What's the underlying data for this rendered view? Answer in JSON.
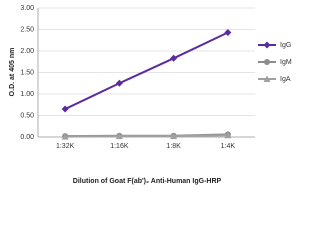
{
  "chart_data": {
    "type": "line",
    "y_label": "O.D. at 405 nm",
    "x_label": "Dilution of Goat F(ab')₂ Anti-Human IgG-HRP",
    "categories": [
      "1:32K",
      "1:16K",
      "1:8K",
      "1:4K"
    ],
    "series": [
      {
        "name": "IgG",
        "color": "#5a2ca0",
        "marker": "diamond",
        "values": [
          0.65,
          1.25,
          1.83,
          2.43
        ]
      },
      {
        "name": "IgM",
        "color": "#8c8c8c",
        "marker": "circle",
        "values": [
          0.02,
          0.03,
          0.03,
          0.06
        ]
      },
      {
        "name": "IgA",
        "color": "#a0a0a0",
        "marker": "triangle",
        "values": [
          0.01,
          0.02,
          0.02,
          0.04
        ]
      }
    ],
    "ylim": [
      0,
      3
    ],
    "yticks": [
      {
        "value": 0,
        "label": "0.00"
      },
      {
        "value": 0.5,
        "label": "0.50"
      },
      {
        "value": 1,
        "label": "1.00"
      },
      {
        "value": 1.5,
        "label": "1.50"
      },
      {
        "value": 2,
        "label": "2.00"
      },
      {
        "value": 2.5,
        "label": "2.50"
      },
      {
        "value": 3,
        "label": "3.00"
      }
    ],
    "grid": true
  }
}
